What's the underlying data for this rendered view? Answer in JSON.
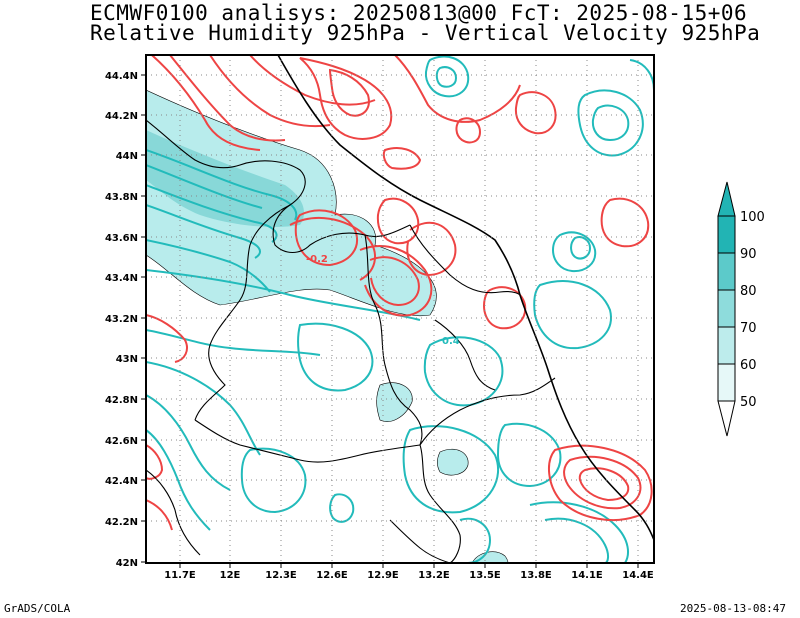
{
  "header": {
    "title_line1": "ECMWF0100 analisys: 20250813@00 FcT: 2025-08-15+06",
    "title_line2": "Relative Humidity 925hPa - Vertical Velocity 925hPa"
  },
  "footer": {
    "left": "GrADS/COLA",
    "right": "2025-08-13-08:47"
  },
  "map": {
    "lat_ticks": [
      "44.4N",
      "44.2N",
      "44N",
      "43.8N",
      "43.6N",
      "43.4N",
      "43.2N",
      "43N",
      "42.8N",
      "42.6N",
      "42.4N",
      "42.2N",
      "42N"
    ],
    "lon_ticks": [
      "11.7E",
      "12E",
      "12.3E",
      "12.6E",
      "12.9E",
      "13.2E",
      "13.5E",
      "13.8E",
      "14.1E",
      "14.4E"
    ],
    "contour_labels": [
      "-0.2",
      "0.4"
    ],
    "colors": {
      "positive_contour": "#ee4444",
      "negative_contour": "#22bbbb",
      "humidity_fill": "#b8ecec",
      "humidity_fill_dark": "#88d8d8",
      "grid": "#888888"
    }
  },
  "colorbar": {
    "labels": [
      "100",
      "90",
      "80",
      "70",
      "60",
      "50"
    ],
    "colors": [
      "#22b4b4",
      "#5ccaca",
      "#8edcdc",
      "#bdecec",
      "#e6f8f8"
    ]
  }
}
